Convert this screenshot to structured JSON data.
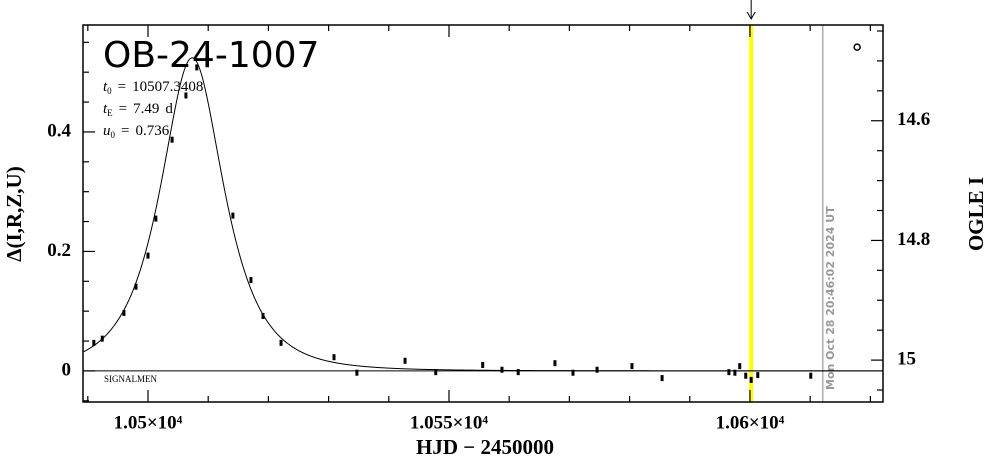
{
  "chart_data": {
    "type": "scatter",
    "title": "OB-24-1007",
    "xlabel": "HJD − 2450000",
    "ylabel": "Δ(I,R,Z,U)",
    "y2label": "OGLE I",
    "annotation": "SIGNALMEN",
    "model": [
      {
        "symbol": "t",
        "sub": "0",
        "sep": "=",
        "value": 10507.3408,
        "unit": ""
      },
      {
        "symbol": "t",
        "sub": "E",
        "sep": "=",
        "value": 7.49,
        "unit": "d"
      },
      {
        "symbol": "u",
        "sub": "0",
        "sep": "=",
        "value": 0.736,
        "unit": ""
      }
    ],
    "xlim": [
      10489.2,
      10622.1
    ],
    "ylim": [
      -0.052,
      0.579
    ],
    "y2lim": [
      15.07,
      14.44
    ],
    "xticks": [
      {
        "value": 10500,
        "label": "1.05×10⁴"
      },
      {
        "value": 10550,
        "label": "1.055×10⁴"
      },
      {
        "value": 10600,
        "label": "1.06×10⁴"
      }
    ],
    "xminorticks": [
      10490,
      10510,
      10520,
      10530,
      10540,
      10560,
      10570,
      10580,
      10590,
      10610,
      10620
    ],
    "yticks": [
      0,
      0.2,
      0.4
    ],
    "yminorticks": [
      -0.05,
      0.05,
      0.1,
      0.15,
      0.25,
      0.3,
      0.35,
      0.45,
      0.5,
      0.55
    ],
    "y2ticks": [
      14.6,
      14.8,
      15
    ],
    "y2minorticks": [
      14.45,
      14.5,
      14.55,
      14.65,
      14.7,
      14.75,
      14.85,
      14.9,
      14.95,
      15.05
    ],
    "baseline": 0,
    "series": [
      {
        "color": "#000000",
        "x": [
          10491.0,
          10492.4,
          10496.0,
          10498.0,
          10500.0,
          10501.3,
          10504.0,
          10506.3,
          10508.1,
          10514.1,
          10517.1,
          10519.1,
          10522.1,
          10530.9,
          10534.7,
          10542.7,
          10547.8,
          10555.6,
          10558.8,
          10561.5,
          10567.6,
          10570.6,
          10574.6,
          10580.4,
          10585.4,
          10596.5,
          10597.5,
          10598.3,
          10599.3,
          10600.2,
          10601.3,
          10610.1
        ],
        "values": [
          0.047,
          0.054,
          0.097,
          0.141,
          0.193,
          0.255,
          0.387,
          0.461,
          0.508,
          0.26,
          0.152,
          0.092,
          0.047,
          0.023,
          -0.003,
          0.017,
          -0.002,
          0.01,
          0.002,
          -0.002,
          0.013,
          -0.003,
          0.002,
          0.008,
          -0.012,
          -0.002,
          -0.003,
          0.008,
          -0.008,
          -0.015,
          -0.007,
          -0.008
        ]
      }
    ],
    "open_marker": {
      "x": 10617.8,
      "y": 0.542
    },
    "vlines": [
      {
        "x": 10600.2,
        "color": "#ffff00",
        "arrow": true
      },
      {
        "x": 10612.1,
        "color": "#999999",
        "label": "Mon Oct 28 20:46:02 2024 UT"
      }
    ]
  }
}
